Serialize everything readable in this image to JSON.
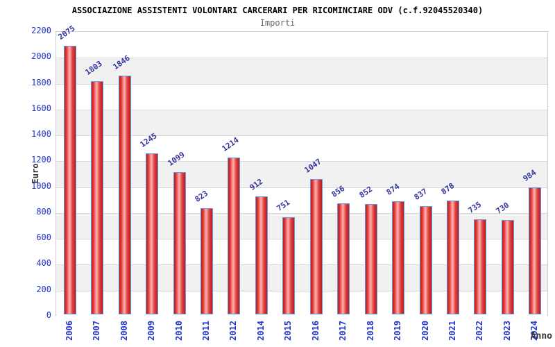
{
  "chart_data": {
    "type": "bar",
    "title": "ASSOCIAZIONE ASSISTENTI VOLONTARI CARCERARI PER RICOMINCIARE ODV (c.f.92045520340)",
    "subtitle": "Importi",
    "xlabel": "Anno",
    "ylabel": "Euro",
    "categories": [
      "2006",
      "2007",
      "2008",
      "2009",
      "2010",
      "2011",
      "2012",
      "2014",
      "2015",
      "2016",
      "2017",
      "2018",
      "2019",
      "2020",
      "2021",
      "2022",
      "2023",
      "2024"
    ],
    "values": [
      2075,
      1803,
      1846,
      1245,
      1099,
      823,
      1214,
      912,
      751,
      1047,
      856,
      852,
      874,
      837,
      878,
      735,
      730,
      984
    ],
    "ylim": [
      0,
      2200
    ],
    "ytick_step": 200,
    "legend": "none",
    "grid": "horizontal-banded",
    "value_labels_rotation_deg": -35,
    "colors": {
      "bar_fill_main": "#e53935",
      "bar_fill_light": "#ffb3b3",
      "bar_fill_dark": "#b71c1c",
      "bar_border": "#5b9ee6",
      "axis_tick_label": "#2233cc",
      "value_label": "#3333a0",
      "band_alt": "#f1f1f1",
      "gridline": "#d8d8d8",
      "title": "#000000",
      "subtitle": "#666666",
      "axis_title": "#333333"
    }
  }
}
